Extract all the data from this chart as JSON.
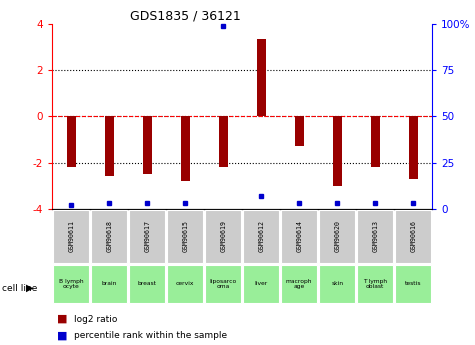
{
  "title": "GDS1835 / 36121",
  "samples": [
    "GSM90611",
    "GSM90618",
    "GSM90617",
    "GSM90615",
    "GSM90619",
    "GSM90612",
    "GSM90614",
    "GSM90620",
    "GSM90613",
    "GSM90616"
  ],
  "cell_lines": [
    "B lymph\nocyte",
    "brain",
    "breast",
    "cervix",
    "liposarco\noma",
    "liver",
    "macroph\nage",
    "skin",
    "T lymph\noblast",
    "testis"
  ],
  "log2_ratio": [
    -2.2,
    -2.6,
    -2.5,
    -2.8,
    -2.2,
    3.35,
    -1.3,
    -3.0,
    -2.2,
    -2.7
  ],
  "percentile_rank": [
    2,
    3,
    3,
    3,
    99,
    7,
    3,
    3,
    3,
    3
  ],
  "bar_color": "#990000",
  "dot_color": "#0000cc",
  "ylim": [
    -4,
    4
  ],
  "y2lim": [
    0,
    100
  ],
  "yticks": [
    -4,
    -2,
    0,
    2,
    4
  ],
  "y2ticks": [
    0,
    25,
    50,
    75,
    100
  ],
  "y2ticklabels": [
    "0",
    "25",
    "50",
    "75",
    "100%"
  ],
  "dotted_lines": [
    -2,
    2
  ],
  "dashed_line_y": 0,
  "bar_width": 0.25,
  "gsm_bg": "#cccccc",
  "cl_bg": "#99ee99",
  "fig_bg": "#ffffff"
}
